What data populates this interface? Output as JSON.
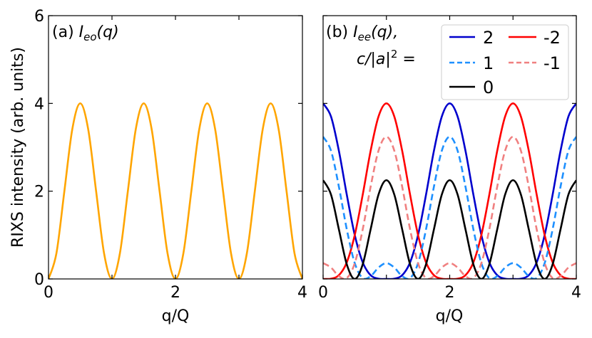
{
  "ylabel": "RIXS intensity (arb. units)",
  "chart_data": [
    {
      "type": "line",
      "panel": "a",
      "title_prefix": "(a) ",
      "title_symbol": "I",
      "title_sub": "eo",
      "title_suffix": "(q)",
      "xlabel": "q/Q",
      "xlim": [
        0,
        4
      ],
      "ylim": [
        0,
        6
      ],
      "xticks": [
        0,
        1,
        2,
        3,
        4
      ],
      "xticklabels": [
        "0",
        "",
        "2",
        "",
        "4"
      ],
      "yticks": [
        0,
        2,
        4,
        6
      ],
      "yticklabels": [
        "0",
        "2",
        "4",
        "6"
      ],
      "x": [
        0,
        0.125,
        0.25,
        0.375,
        0.5,
        0.625,
        0.75,
        0.875,
        1,
        1.125,
        1.25,
        1.375,
        1.5,
        1.625,
        1.75,
        1.875,
        2,
        2.125,
        2.25,
        2.375,
        2.5,
        2.625,
        2.75,
        2.875,
        3,
        3.125,
        3.25,
        3.375,
        3.5,
        3.625,
        3.75,
        3.875,
        4
      ],
      "series": [
        {
          "name": "Ieo",
          "color": "#FFA500",
          "dash": "solid",
          "values": [
            0,
            0.586,
            2,
            3.414,
            4,
            3.414,
            2,
            0.586,
            0,
            0.586,
            2,
            3.414,
            4,
            3.414,
            2,
            0.586,
            0,
            0.586,
            2,
            3.414,
            4,
            3.414,
            2,
            0.586,
            0,
            0.586,
            2,
            3.414,
            4,
            3.414,
            2,
            0.586,
            0
          ]
        }
      ]
    },
    {
      "type": "line",
      "panel": "b",
      "title_prefix": "(b) ",
      "title_symbol": "I",
      "title_sub": "ee",
      "title_suffix": "(q),",
      "title_line2": "c/|a|",
      "title_line2_sup": "2",
      "title_line2_suffix": " =",
      "xlabel": "q/Q",
      "xlim": [
        0,
        4
      ],
      "ylim": [
        0,
        6
      ],
      "xticks": [
        0,
        1,
        2,
        3,
        4
      ],
      "xticklabels": [
        "0",
        "",
        "2",
        "",
        "4"
      ],
      "yticks": [
        0,
        2,
        4,
        6
      ],
      "legend_position": "top-right",
      "x": [
        0,
        0.125,
        0.25,
        0.375,
        0.5,
        0.625,
        0.75,
        0.875,
        1,
        1.125,
        1.25,
        1.375,
        1.5,
        1.625,
        1.75,
        1.875,
        2,
        2.125,
        2.25,
        2.375,
        2.5,
        2.625,
        2.75,
        2.875,
        3,
        3.125,
        3.25,
        3.375,
        3.5,
        3.625,
        3.75,
        3.875,
        4
      ],
      "series": [
        {
          "name": "2",
          "color": "#0000CD",
          "dash": "solid",
          "values": [
            4,
            3.7,
            2.914,
            1.913,
            1,
            0.381,
            0.086,
            0.006,
            0,
            0.006,
            0.086,
            0.381,
            1,
            1.913,
            2.914,
            3.7,
            4,
            3.7,
            2.914,
            1.913,
            1,
            0.381,
            0.086,
            0.006,
            0,
            0.006,
            0.086,
            0.381,
            1,
            1.913,
            2.914,
            3.7,
            4
          ]
        },
        {
          "name": "-2",
          "color": "#FF0000",
          "dash": "solid",
          "values": [
            0,
            0.006,
            0.086,
            0.381,
            1,
            1.913,
            2.914,
            3.7,
            4,
            3.7,
            2.914,
            1.913,
            1,
            0.381,
            0.086,
            0.006,
            0,
            0.006,
            0.086,
            0.381,
            1,
            1.913,
            2.914,
            3.7,
            4,
            3.7,
            2.914,
            1.913,
            1,
            0.381,
            0.086,
            0.006,
            0
          ]
        },
        {
          "name": "1",
          "color": "#1E90FF",
          "dash": "dashed",
          "values": [
            3.24,
            2.921,
            2.097,
            1.124,
            0.36,
            0.02,
            0.062,
            0.259,
            0.36,
            0.259,
            0.062,
            0.02,
            0.36,
            1.124,
            2.097,
            2.921,
            3.24,
            2.921,
            2.097,
            1.124,
            0.36,
            0.02,
            0.062,
            0.259,
            0.36,
            0.259,
            0.062,
            0.02,
            0.36,
            1.124,
            2.097,
            2.921,
            3.24
          ]
        },
        {
          "name": "-1",
          "color": "#F08080",
          "dash": "dashed",
          "values": [
            0.36,
            0.259,
            0.062,
            0.02,
            0.36,
            1.124,
            2.097,
            2.921,
            3.24,
            2.921,
            2.097,
            1.124,
            0.36,
            0.02,
            0.062,
            0.259,
            0.36,
            0.259,
            0.062,
            0.02,
            0.36,
            1.124,
            2.097,
            2.921,
            3.24,
            2.921,
            2.097,
            1.124,
            0.36,
            0.02,
            0.062,
            0.259,
            0.36
          ]
        },
        {
          "name": "0",
          "color": "#000000",
          "dash": "solid",
          "values": [
            2.25,
            1.921,
            1.125,
            0.329,
            0,
            0.329,
            1.125,
            1.921,
            2.25,
            1.921,
            1.125,
            0.329,
            0,
            0.329,
            1.125,
            1.921,
            2.25,
            1.921,
            1.125,
            0.329,
            0,
            0.329,
            1.125,
            1.921,
            2.25,
            1.921,
            1.125,
            0.329,
            0,
            0.329,
            1.125,
            1.921,
            2.25
          ]
        }
      ]
    }
  ]
}
